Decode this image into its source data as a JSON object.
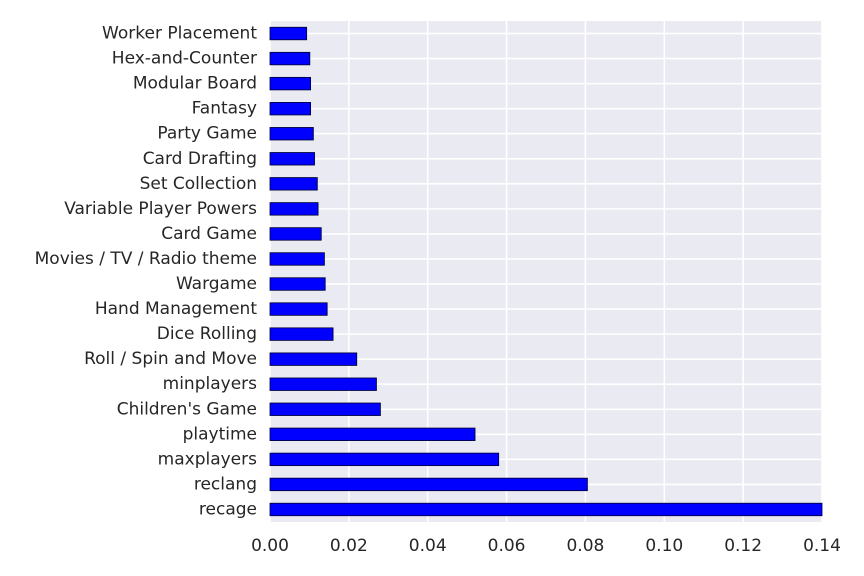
{
  "chart_data": {
    "type": "bar",
    "orientation": "horizontal",
    "categories": [
      "recage",
      "reclang",
      "maxplayers",
      "playtime",
      "Children's Game",
      "minplayers",
      "Roll / Spin and Move",
      "Dice Rolling",
      "Hand Management",
      "Wargame",
      "Movies / TV / Radio theme",
      "Card Game",
      "Variable Player Powers",
      "Set Collection",
      "Card Drafting",
      "Party Game",
      "Fantasy",
      "Modular Board",
      "Hex-and-Counter",
      "Worker Placement"
    ],
    "values": [
      0.14,
      0.0805,
      0.058,
      0.052,
      0.028,
      0.027,
      0.022,
      0.016,
      0.0145,
      0.014,
      0.0138,
      0.013,
      0.0122,
      0.012,
      0.0113,
      0.011,
      0.0103,
      0.0103,
      0.0101,
      0.0093
    ],
    "title": "",
    "xlabel": "",
    "ylabel": "",
    "xlim": [
      0,
      0.14
    ],
    "xticks": [
      "0.00",
      "0.02",
      "0.04",
      "0.06",
      "0.08",
      "0.10",
      "0.12",
      "0.14"
    ],
    "grid": true,
    "legend": "none",
    "colors": {
      "bar": "#0000ff",
      "bar_edge": "#00002e",
      "background": "#eaeaf2",
      "grid": "#ffffff",
      "text": "#262626"
    }
  }
}
